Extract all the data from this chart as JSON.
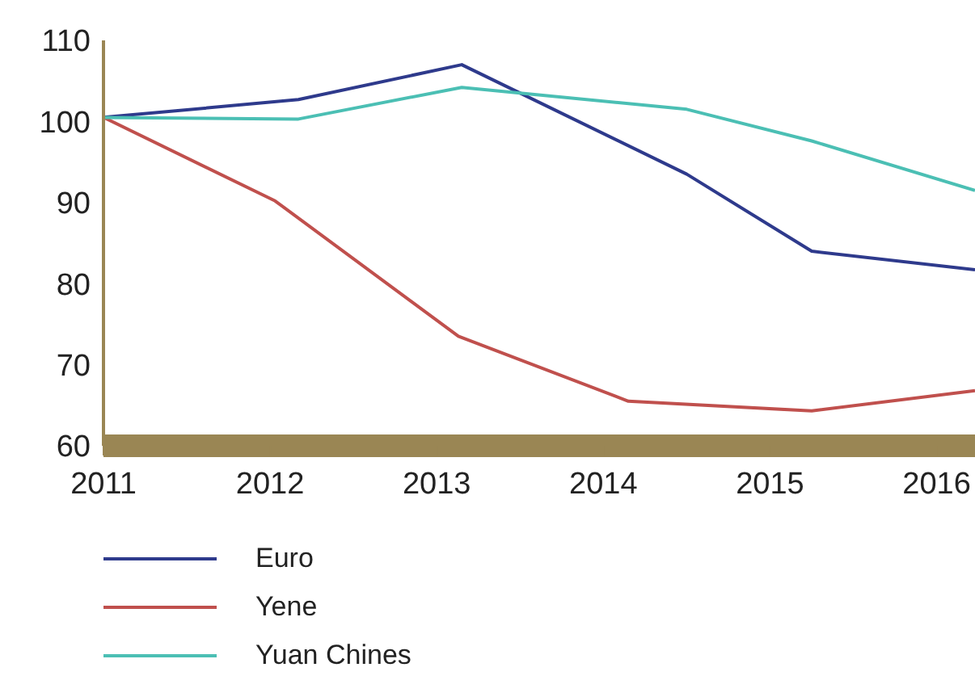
{
  "chart_data": {
    "type": "line",
    "xlim": [
      2011,
      2016.23
    ],
    "xticks": [
      2011,
      2012,
      2013,
      2014,
      2015,
      2016
    ],
    "ylim": [
      60,
      110
    ],
    "yticks": [
      60,
      70,
      80,
      90,
      100,
      110
    ],
    "grid": false,
    "legend": "bottom left",
    "marker": "none",
    "line_style": "solid",
    "series": [
      {
        "name": "Euro",
        "color": "#2e3a8c",
        "x": [
          2011,
          2012.17,
          2013.15,
          2014.5,
          2015.25,
          2016.23
        ],
        "values": [
          100.5,
          102.7,
          107,
          93.5,
          84,
          81.7
        ]
      },
      {
        "name": "Yene",
        "color": "#c0504d",
        "x": [
          2011,
          2012.03,
          2013.13,
          2014.15,
          2015.25,
          2016.23
        ],
        "values": [
          100.5,
          90.2,
          73.5,
          65.5,
          64.3,
          66.8
        ]
      },
      {
        "name": "Yuan Chines",
        "color": "#4bbfb4",
        "x": [
          2011,
          2012.17,
          2013.15,
          2014.5,
          2015.25,
          2016.23
        ],
        "values": [
          100.5,
          100.3,
          104.2,
          101.5,
          97.6,
          91.5
        ]
      }
    ]
  }
}
